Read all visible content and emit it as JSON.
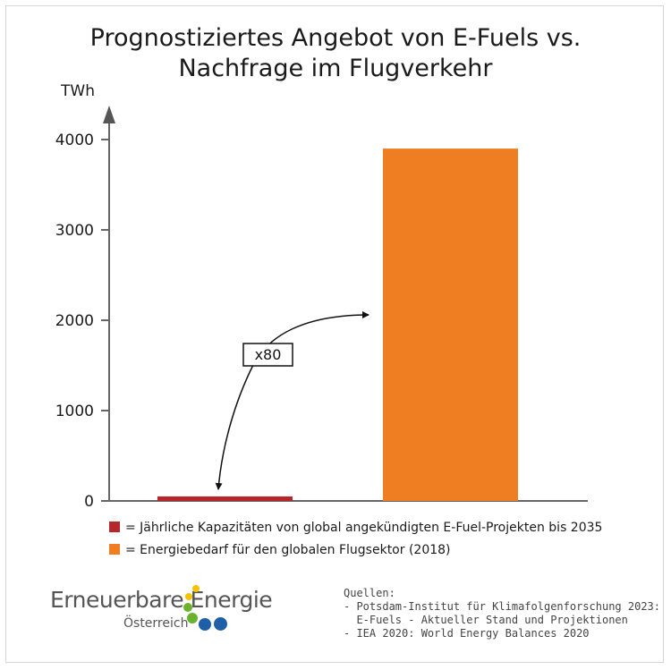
{
  "chart_data": {
    "type": "bar",
    "title_line1": "Prognostiziertes Angebot von E-Fuels vs.",
    "title_line2": "Nachfrage im Flugverkehr",
    "ylabel": "TWh",
    "ylim": [
      0,
      4000
    ],
    "yticks": [
      "0",
      "1000",
      "2000",
      "3000",
      "4000"
    ],
    "categories": [
      "Jährliche Kapazitäten von global angekündigten E-Fuel-Projekten bis 2035",
      "Energiebedarf für den globalen Flugsektor (2018)"
    ],
    "values": [
      50,
      3900
    ],
    "colors": [
      "#b7262b",
      "#ef7d22"
    ],
    "annotation": "x80"
  },
  "legend": [
    {
      "text": "= Jährliche Kapazitäten von global angekündigten E-Fuel-Projekten bis 2035",
      "color": "#b7262b"
    },
    {
      "text": "= Energiebedarf für den globalen Flugsektor (2018)",
      "color": "#ef7d22"
    }
  ],
  "logo": {
    "line1": "Erneuerbare Energie",
    "line2": "Österreich",
    "dot_colors": [
      "#f6c200",
      "#6ab42d",
      "#1f5fa8"
    ]
  },
  "sources": {
    "heading": "Quellen:",
    "line1": "- Potsdam-Institut für Klimafolgenforschung 2023:",
    "line2": "  E-Fuels - Aktueller Stand und Projektionen",
    "line3": "- IEA 2020: World Energy Balances 2020"
  }
}
